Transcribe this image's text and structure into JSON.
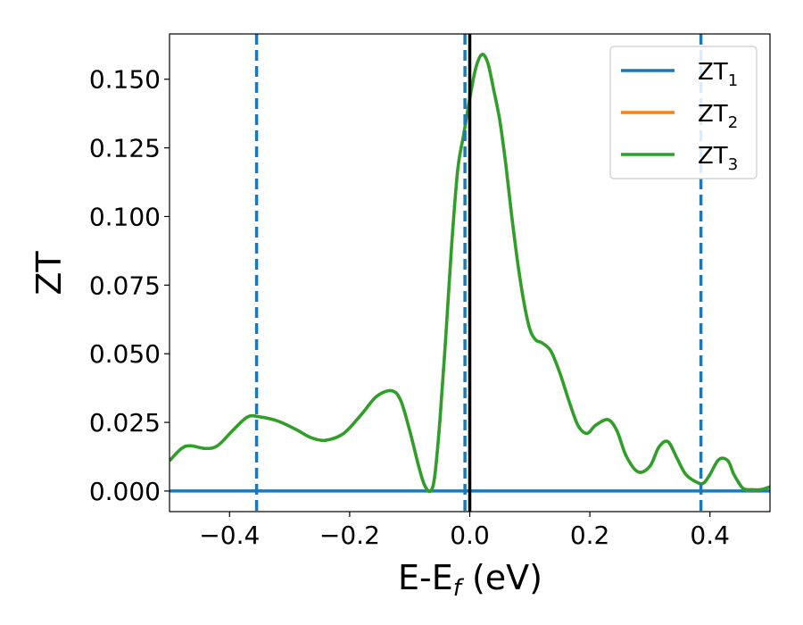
{
  "chart_data": {
    "type": "line",
    "xlabel": "E-E_f (eV)",
    "ylabel": "ZT",
    "xlim": [
      -0.5,
      0.5
    ],
    "ylim": [
      -0.0075,
      0.1665
    ],
    "x_ticks": [
      -0.4,
      -0.2,
      0.0,
      0.2,
      0.4
    ],
    "x_tick_labels": [
      "−0.4",
      "−0.2",
      "0.0",
      "0.2",
      "0.4"
    ],
    "y_ticks": [
      0.0,
      0.025,
      0.05,
      0.075,
      0.1,
      0.125,
      0.15
    ],
    "y_tick_labels": [
      "0.000",
      "0.025",
      "0.050",
      "0.075",
      "0.100",
      "0.125",
      "0.150"
    ],
    "grid": false,
    "legend_position": "top-right",
    "series": [
      {
        "name": "ZT_1",
        "label_base": "ZT",
        "label_sub": "1",
        "color": "#1f77b4",
        "x": [
          -0.5,
          0.5
        ],
        "y": [
          0.0,
          0.0
        ]
      },
      {
        "name": "ZT_2",
        "label_base": "ZT",
        "label_sub": "2",
        "color": "#ff7f0e",
        "x": [
          -0.5,
          -0.48,
          -0.465,
          -0.44,
          -0.42,
          -0.395,
          -0.37,
          -0.35,
          -0.32,
          -0.29,
          -0.265,
          -0.24,
          -0.21,
          -0.18,
          -0.155,
          -0.13,
          -0.115,
          -0.1,
          -0.085,
          -0.075,
          -0.065,
          -0.058,
          -0.05,
          -0.04,
          -0.03,
          -0.02,
          -0.01,
          0.0,
          0.01,
          0.02,
          0.03,
          0.04,
          0.05,
          0.06,
          0.07,
          0.08,
          0.09,
          0.1,
          0.11,
          0.12,
          0.135,
          0.15,
          0.165,
          0.18,
          0.195,
          0.21,
          0.23,
          0.245,
          0.26,
          0.28,
          0.3,
          0.315,
          0.33,
          0.345,
          0.36,
          0.38,
          0.39,
          0.4,
          0.415,
          0.43,
          0.44,
          0.455,
          0.47,
          0.485,
          0.5
        ],
        "y": [
          0.011,
          0.0155,
          0.0165,
          0.0155,
          0.0165,
          0.022,
          0.027,
          0.027,
          0.0255,
          0.0225,
          0.0195,
          0.0185,
          0.021,
          0.028,
          0.0345,
          0.0365,
          0.033,
          0.022,
          0.009,
          0.002,
          0.0,
          0.006,
          0.025,
          0.056,
          0.09,
          0.117,
          0.13,
          0.143,
          0.154,
          0.159,
          0.156,
          0.146,
          0.135,
          0.119,
          0.1,
          0.083,
          0.069,
          0.059,
          0.055,
          0.054,
          0.051,
          0.043,
          0.033,
          0.024,
          0.021,
          0.024,
          0.026,
          0.022,
          0.013,
          0.007,
          0.009,
          0.016,
          0.018,
          0.012,
          0.006,
          0.003,
          0.003,
          0.006,
          0.0115,
          0.011,
          0.006,
          0.001,
          0.0005,
          0.0005,
          0.0015
        ]
      },
      {
        "name": "ZT_3",
        "label_base": "ZT",
        "label_sub": "3",
        "color": "#2ca02c",
        "x": [
          -0.5,
          -0.48,
          -0.465,
          -0.44,
          -0.42,
          -0.395,
          -0.37,
          -0.35,
          -0.32,
          -0.29,
          -0.265,
          -0.24,
          -0.21,
          -0.18,
          -0.155,
          -0.13,
          -0.115,
          -0.1,
          -0.085,
          -0.075,
          -0.065,
          -0.058,
          -0.05,
          -0.04,
          -0.03,
          -0.02,
          -0.01,
          0.0,
          0.01,
          0.02,
          0.03,
          0.04,
          0.05,
          0.06,
          0.07,
          0.08,
          0.09,
          0.1,
          0.11,
          0.12,
          0.135,
          0.15,
          0.165,
          0.18,
          0.195,
          0.21,
          0.23,
          0.245,
          0.26,
          0.28,
          0.3,
          0.315,
          0.33,
          0.345,
          0.36,
          0.38,
          0.39,
          0.4,
          0.415,
          0.43,
          0.44,
          0.455,
          0.47,
          0.485,
          0.5
        ],
        "y": [
          0.011,
          0.0155,
          0.0165,
          0.0155,
          0.0165,
          0.022,
          0.027,
          0.027,
          0.0255,
          0.0225,
          0.0195,
          0.0185,
          0.021,
          0.028,
          0.0345,
          0.0365,
          0.033,
          0.022,
          0.009,
          0.002,
          0.0,
          0.006,
          0.025,
          0.056,
          0.09,
          0.117,
          0.13,
          0.143,
          0.154,
          0.159,
          0.156,
          0.146,
          0.135,
          0.119,
          0.1,
          0.083,
          0.069,
          0.059,
          0.055,
          0.054,
          0.051,
          0.043,
          0.033,
          0.024,
          0.021,
          0.024,
          0.026,
          0.022,
          0.013,
          0.007,
          0.009,
          0.016,
          0.018,
          0.012,
          0.006,
          0.003,
          0.003,
          0.006,
          0.0115,
          0.011,
          0.006,
          0.001,
          0.0005,
          0.0005,
          0.0015
        ]
      }
    ],
    "vertical_lines": [
      {
        "x": -0.355,
        "style": "dashed",
        "color": "#1f77b4"
      },
      {
        "x": -0.008,
        "style": "dashed",
        "color": "#1f77b4"
      },
      {
        "x": 0.0,
        "style": "solid",
        "color": "#000000"
      },
      {
        "x": 0.385,
        "style": "dashed",
        "color": "#1f77b4"
      }
    ]
  }
}
